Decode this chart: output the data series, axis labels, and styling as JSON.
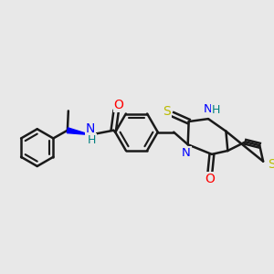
{
  "background_color": "#e8e8e8",
  "bond_color": "#1a1a1a",
  "bond_width": 1.8,
  "wedge_color": "#0000FF",
  "atoms": {
    "N": "#0000FF",
    "O": "#FF0000",
    "S_thioxo": "#BBBB00",
    "S_thio": "#BBBB00",
    "H": "#008080",
    "N_blue": "#0000FF"
  }
}
